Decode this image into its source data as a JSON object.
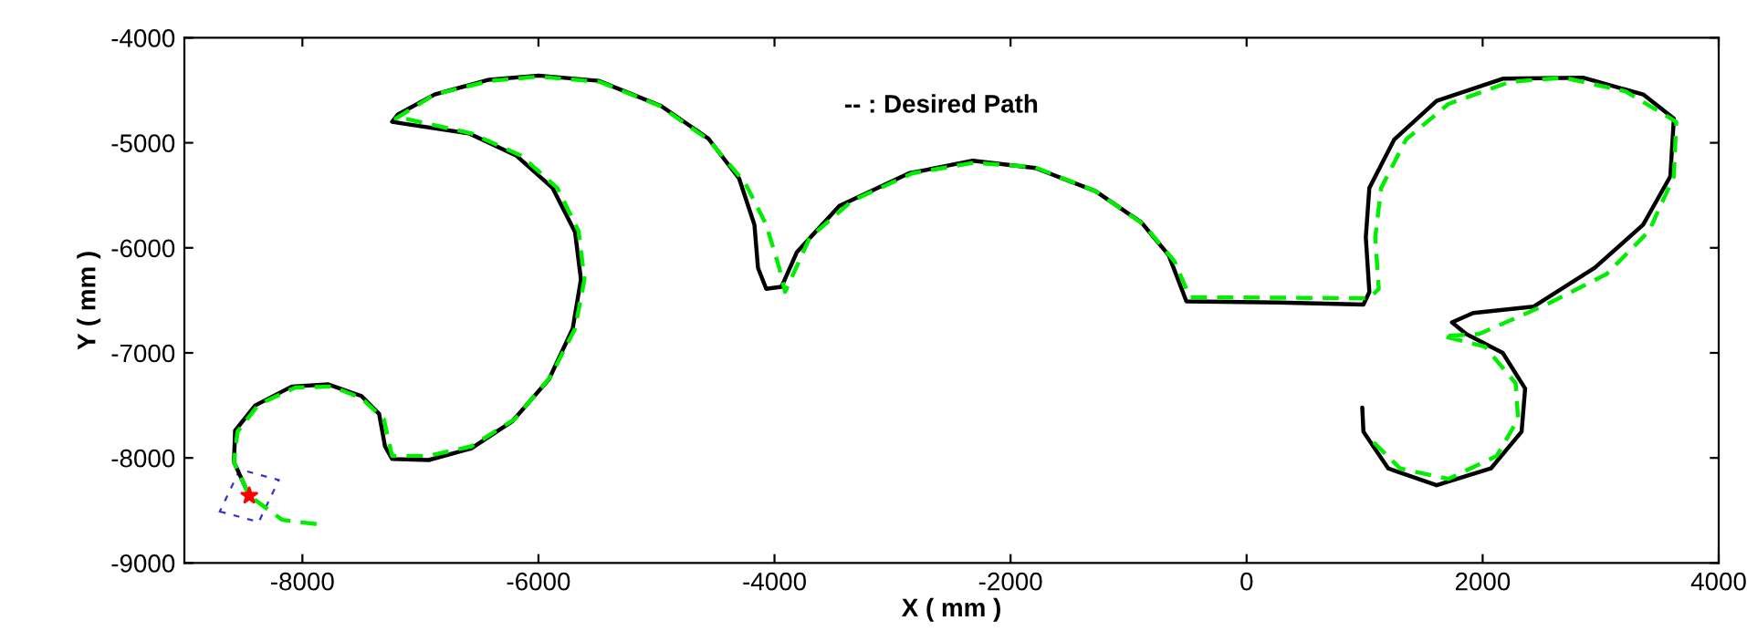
{
  "chart_data": {
    "type": "line",
    "xlabel": "X ( mm )",
    "ylabel": "Y ( mm )",
    "annotations": [
      "-- : Desired Path"
    ],
    "xlim": [
      -9000,
      4000
    ],
    "xticks": [
      -8000,
      -6000,
      -4000,
      -2000,
      0,
      2000,
      4000
    ],
    "ylim": [
      -9000,
      -4000
    ],
    "yticks": [
      -9000,
      -8000,
      -7000,
      -6000,
      -5000,
      -4000
    ],
    "grid": false,
    "legend": false,
    "series": [
      {
        "color": "#000000",
        "line_style": "solid",
        "marker": "none",
        "x": [
          -8450,
          -8580,
          -8570,
          -8400,
          -8090,
          -7780,
          -7500,
          -7350,
          -7300,
          -7240,
          -6930,
          -6570,
          -6220,
          -5910,
          -5710,
          -5640,
          -5690,
          -5880,
          -6190,
          -6590,
          -7130,
          -7240,
          -7190,
          -6880,
          -6420,
          -6000,
          -5490,
          -4960,
          -4560,
          -4300,
          -4170,
          -4140,
          -4070,
          -3940,
          -3810,
          -3450,
          -2860,
          -2320,
          -1790,
          -1280,
          -890,
          -660,
          -510,
          270,
          990,
          1040,
          1010,
          1040,
          1250,
          1610,
          2170,
          2850,
          3360,
          3620,
          3590,
          3360,
          2950,
          2430,
          1920,
          1740,
          1860,
          2170,
          2360,
          2330,
          2070,
          1610,
          1200,
          990,
          980
        ],
        "values": [
          -8360,
          -8040,
          -7740,
          -7500,
          -7320,
          -7300,
          -7410,
          -7580,
          -7890,
          -8010,
          -8020,
          -7910,
          -7650,
          -7250,
          -6770,
          -6300,
          -5850,
          -5430,
          -5120,
          -4910,
          -4820,
          -4800,
          -4730,
          -4540,
          -4400,
          -4360,
          -4410,
          -4650,
          -4960,
          -5340,
          -5780,
          -6190,
          -6390,
          -6370,
          -6040,
          -5600,
          -5290,
          -5170,
          -5240,
          -5460,
          -5760,
          -6070,
          -6510,
          -6520,
          -6540,
          -6420,
          -5900,
          -5430,
          -4970,
          -4600,
          -4390,
          -4380,
          -4540,
          -4770,
          -5320,
          -5780,
          -6190,
          -6560,
          -6620,
          -6710,
          -6820,
          -7000,
          -7340,
          -7750,
          -8100,
          -8260,
          -8100,
          -7750,
          -7520
        ]
      },
      {
        "color": "#00ee00",
        "line_style": "dashed",
        "marker": "none",
        "x": [
          -7880,
          -8170,
          -8450,
          -8580,
          -8550,
          -8370,
          -8060,
          -7750,
          -7500,
          -7310,
          -7240,
          -6930,
          -6570,
          -6200,
          -5900,
          -5690,
          -5610,
          -5660,
          -5840,
          -6150,
          -6570,
          -7130,
          -7210,
          -6880,
          -6410,
          -6000,
          -5480,
          -4970,
          -4560,
          -4250,
          -4070,
          -3960,
          -3910,
          -3700,
          -3340,
          -2830,
          -2310,
          -1800,
          -1280,
          -870,
          -610,
          -480,
          1040,
          1120,
          1090,
          1140,
          1350,
          1710,
          2230,
          2690,
          3210,
          3640,
          3620,
          3410,
          3050,
          2540,
          1970,
          1660,
          2020,
          2280,
          2300,
          2120,
          1710,
          1300,
          1040
        ],
        "values": [
          -8630,
          -8590,
          -8360,
          -8040,
          -7750,
          -7490,
          -7330,
          -7320,
          -7430,
          -7630,
          -7980,
          -7980,
          -7890,
          -7630,
          -7230,
          -6770,
          -6300,
          -5840,
          -5430,
          -5120,
          -4910,
          -4770,
          -4770,
          -4540,
          -4410,
          -4370,
          -4420,
          -4650,
          -4970,
          -5380,
          -5780,
          -6190,
          -6420,
          -5900,
          -5550,
          -5290,
          -5190,
          -5230,
          -5460,
          -5780,
          -6130,
          -6470,
          -6480,
          -6390,
          -5900,
          -5430,
          -4970,
          -4630,
          -4420,
          -4380,
          -4510,
          -4800,
          -5320,
          -5840,
          -6250,
          -6540,
          -6820,
          -6840,
          -6940,
          -7290,
          -7630,
          -7980,
          -8200,
          -8100,
          -7810
        ]
      },
      {
        "type": "scatter",
        "color": "#ff0000",
        "marker": "star",
        "x": [
          -8450
        ],
        "values": [
          -8360
        ]
      }
    ]
  }
}
